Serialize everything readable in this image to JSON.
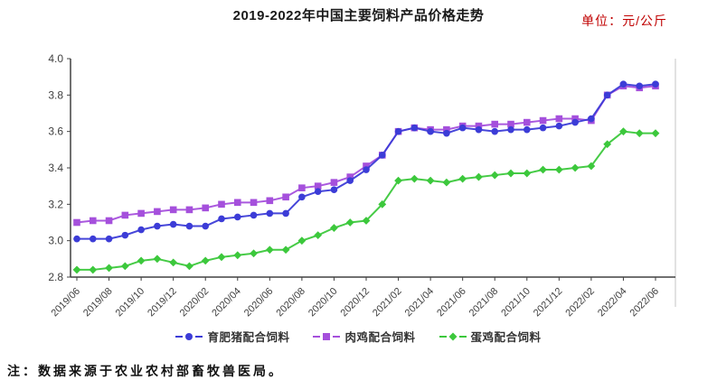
{
  "header": {
    "title": "2019-2022年中国主要饲料产品价格走势",
    "unit_label": "单位：元/公斤"
  },
  "footnote": "注：数据来源于农业农村部畜牧兽医局。",
  "colors": {
    "pig_feed": "#3c3cd7",
    "broiler_feed": "#a550dc",
    "layer_feed": "#3cc83c",
    "axis": "#404040",
    "tick_text": "#404040",
    "unit_text": "#c00000",
    "plot_right_border": "#d9d9d9"
  },
  "chart_data": {
    "type": "line",
    "title": "2019-2022年中国主要饲料产品价格走势",
    "unit": "元/公斤",
    "xlabel": "",
    "ylabel": "",
    "ylim": [
      2.8,
      4.0
    ],
    "y_ticks": [
      2.8,
      3.0,
      3.2,
      3.4,
      3.6,
      3.8,
      4.0
    ],
    "grid": false,
    "legend_position": "bottom",
    "x_tick_step": 2,
    "x_tick_labels": [
      "2019/06",
      "2019/08",
      "2019/10",
      "2019/12",
      "2020/02",
      "2020/04",
      "2020/06",
      "2020/08",
      "2020/10",
      "2020/12",
      "2021/02",
      "2021/04",
      "2021/06",
      "2021/08",
      "2021/10",
      "2021/12",
      "2022/02",
      "2022/04",
      "2022/06"
    ],
    "categories": [
      "2019/06",
      "2019/07",
      "2019/08",
      "2019/09",
      "2019/10",
      "2019/11",
      "2019/12",
      "2020/01",
      "2020/02",
      "2020/03",
      "2020/04",
      "2020/05",
      "2020/06",
      "2020/07",
      "2020/08",
      "2020/09",
      "2020/10",
      "2020/11",
      "2020/12",
      "2021/01",
      "2021/02",
      "2021/03",
      "2021/04",
      "2021/05",
      "2021/06",
      "2021/07",
      "2021/08",
      "2021/09",
      "2021/10",
      "2021/11",
      "2021/12",
      "2022/01",
      "2022/02",
      "2022/03",
      "2022/04",
      "2022/05",
      "2022/06"
    ],
    "series": [
      {
        "name": "育肥猪配合饲料",
        "marker": "circle",
        "color": "#3c3cd7",
        "values": [
          3.01,
          3.01,
          3.01,
          3.03,
          3.06,
          3.08,
          3.09,
          3.08,
          3.08,
          3.12,
          3.13,
          3.14,
          3.15,
          3.15,
          3.24,
          3.27,
          3.28,
          3.33,
          3.39,
          3.47,
          3.6,
          3.62,
          3.6,
          3.59,
          3.62,
          3.61,
          3.6,
          3.61,
          3.61,
          3.62,
          3.63,
          3.65,
          3.67,
          3.8,
          3.86,
          3.85,
          3.86
        ]
      },
      {
        "name": "肉鸡配合饲料",
        "marker": "square",
        "color": "#a550dc",
        "values": [
          3.1,
          3.11,
          3.11,
          3.14,
          3.15,
          3.16,
          3.17,
          3.17,
          3.18,
          3.2,
          3.21,
          3.21,
          3.22,
          3.24,
          3.29,
          3.3,
          3.32,
          3.35,
          3.41,
          3.47,
          3.6,
          3.62,
          3.61,
          3.61,
          3.63,
          3.63,
          3.64,
          3.64,
          3.65,
          3.66,
          3.67,
          3.67,
          3.66,
          3.8,
          3.85,
          3.84,
          3.85
        ]
      },
      {
        "name": "蛋鸡配合饲料",
        "marker": "diamond",
        "color": "#3cc83c",
        "values": [
          2.84,
          2.84,
          2.85,
          2.86,
          2.89,
          2.9,
          2.88,
          2.86,
          2.89,
          2.91,
          2.92,
          2.93,
          2.95,
          2.95,
          3.0,
          3.03,
          3.07,
          3.1,
          3.11,
          3.2,
          3.33,
          3.34,
          3.33,
          3.32,
          3.34,
          3.35,
          3.36,
          3.37,
          3.37,
          3.39,
          3.39,
          3.4,
          3.41,
          3.53,
          3.6,
          3.59,
          3.59
        ]
      }
    ]
  }
}
